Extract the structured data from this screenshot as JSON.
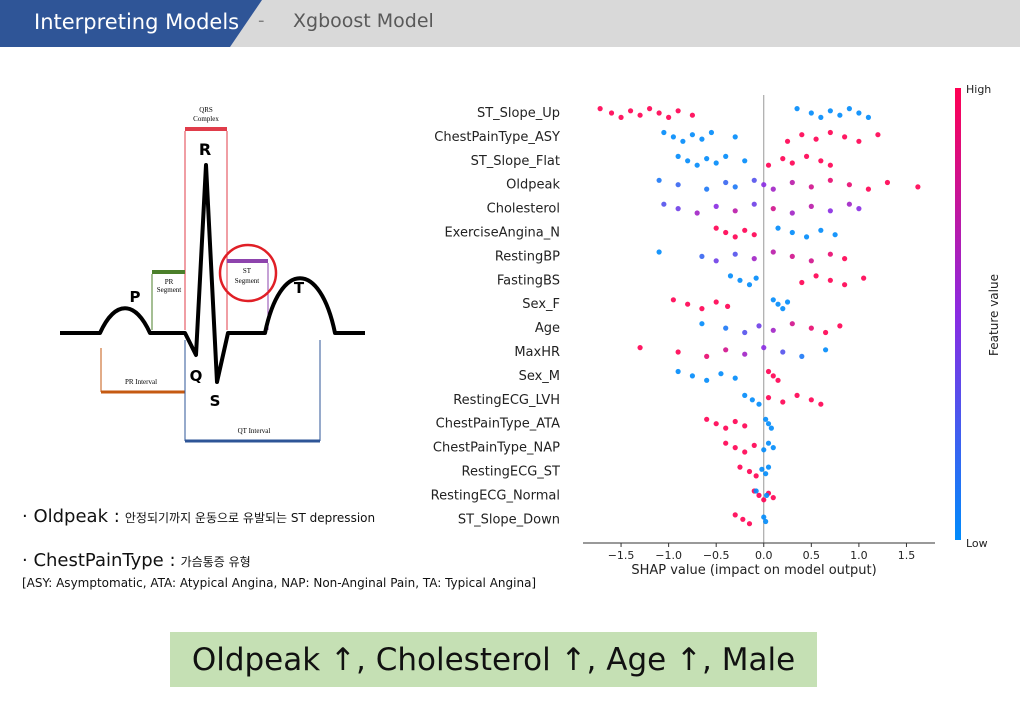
{
  "header": {
    "section": "Interpreting Models",
    "separator": "-",
    "subtitle": "Xgboost Model"
  },
  "diagram": {
    "qrs": [
      "QRS",
      "Complex"
    ],
    "r": "R",
    "p": "P",
    "pr_segment": [
      "PR",
      "Segment"
    ],
    "st_segment": [
      "ST",
      "Segment"
    ],
    "t": "T",
    "q": "Q",
    "s": "S",
    "pr_interval": "PR Interval",
    "qt_interval": "QT Interval"
  },
  "notes": [
    {
      "term": "· Oldpeak :",
      "desc": "안정되기까지 운동으로 유발되는 ST depression"
    },
    {
      "term": "· ChestPainType :",
      "desc": "가슴통증 유형"
    }
  ],
  "abbreviations": "[ASY: Asymptomatic, ATA: Atypical Angina, NAP: Non-Anginal Pain, TA: Typical Angina]",
  "conclusion": "Oldpeak ↑, Cholesterol ↑, Age ↑, Male",
  "chart_data": {
    "type": "beeswarm",
    "xlabel": "SHAP value (impact on model output)",
    "xlim": [
      -1.9,
      1.8
    ],
    "xticks": [
      {
        "value": -1.5,
        "label": "−1.5"
      },
      {
        "value": -1.0,
        "label": "−1.0"
      },
      {
        "value": -0.5,
        "label": "−0.5"
      },
      {
        "value": 0,
        "label": "0.0"
      },
      0.5,
      {
        "value": 1.0,
        "label": "1.0"
      },
      1.5
    ],
    "colorbar": {
      "label": "Feature value",
      "high": "High",
      "low": "Low"
    },
    "colormap": [
      "#008bfb",
      "#8a2be2",
      "#ff0052"
    ],
    "series": [
      {
        "name": "ST_Slope_Up",
        "values": [
          -1.72,
          -1.6,
          -1.5,
          -1.4,
          -1.3,
          -1.2,
          -1.1,
          -1.0,
          -0.9,
          -0.75,
          0.35,
          0.5,
          0.6,
          0.7,
          0.8,
          0.9,
          1.0,
          1.1
        ],
        "feature_values": [
          1,
          1,
          1,
          1,
          1,
          1,
          1,
          1,
          1,
          1,
          0,
          0,
          0,
          0,
          0,
          0,
          0,
          0
        ]
      },
      {
        "name": "ChestPainType_ASY",
        "values": [
          -1.05,
          -0.95,
          -0.85,
          -0.75,
          -0.65,
          -0.55,
          -0.3,
          0.25,
          0.4,
          0.55,
          0.7,
          0.85,
          1.0,
          1.2
        ],
        "feature_values": [
          0,
          0,
          0,
          0,
          0,
          0,
          0,
          1,
          1,
          1,
          1,
          1,
          1,
          1
        ]
      },
      {
        "name": "ST_Slope_Flat",
        "values": [
          -0.9,
          -0.8,
          -0.7,
          -0.6,
          -0.5,
          -0.4,
          -0.2,
          0.05,
          0.2,
          0.3,
          0.45,
          0.6,
          0.7
        ],
        "feature_values": [
          0,
          0,
          0,
          0,
          0,
          0,
          0,
          1,
          1,
          1,
          1,
          1,
          1
        ]
      },
      {
        "name": "Oldpeak",
        "values": [
          -1.1,
          -0.9,
          -0.6,
          -0.4,
          -0.3,
          -0.1,
          0.0,
          0.1,
          0.3,
          0.5,
          0.7,
          0.9,
          1.1,
          1.3,
          1.62
        ],
        "feature_values": [
          0.1,
          0.2,
          0.1,
          0.2,
          0.1,
          0.3,
          0.5,
          0.6,
          0.7,
          0.8,
          0.9,
          0.9,
          1,
          1,
          1
        ]
      },
      {
        "name": "Cholesterol",
        "values": [
          -1.05,
          -0.9,
          -0.7,
          -0.5,
          -0.3,
          -0.1,
          0.1,
          0.3,
          0.5,
          0.7,
          0.9,
          1.0
        ],
        "feature_values": [
          0.3,
          0.4,
          0.6,
          0.5,
          0.7,
          0.4,
          0.8,
          0.6,
          0.7,
          0.5,
          0.6,
          0.5
        ]
      },
      {
        "name": "ExerciseAngina_N",
        "values": [
          -0.5,
          -0.4,
          -0.3,
          -0.2,
          -0.1,
          0.15,
          0.3,
          0.45,
          0.6,
          0.75
        ],
        "feature_values": [
          1,
          1,
          1,
          1,
          1,
          0,
          0,
          0,
          0,
          0
        ]
      },
      {
        "name": "RestingBP",
        "values": [
          -1.1,
          -0.65,
          -0.5,
          -0.3,
          -0.1,
          0.1,
          0.3,
          0.5,
          0.7,
          0.85
        ],
        "feature_values": [
          0,
          0.2,
          0.4,
          0.3,
          0.6,
          0.7,
          0.8,
          0.8,
          0.9,
          1
        ]
      },
      {
        "name": "FastingBS",
        "values": [
          -0.35,
          -0.25,
          -0.15,
          -0.08,
          0.4,
          0.55,
          0.7,
          0.85,
          1.05
        ],
        "feature_values": [
          0,
          0,
          0,
          0,
          1,
          1,
          1,
          1,
          1
        ]
      },
      {
        "name": "Sex_F",
        "values": [
          -0.95,
          -0.8,
          -0.65,
          -0.5,
          -0.38,
          0.1,
          0.15,
          0.2,
          0.25
        ],
        "feature_values": [
          1,
          1,
          1,
          1,
          1,
          0,
          0,
          0,
          0
        ]
      },
      {
        "name": "Age",
        "values": [
          -0.65,
          -0.4,
          -0.2,
          -0.05,
          0.1,
          0.3,
          0.5,
          0.65,
          0.8
        ],
        "feature_values": [
          0,
          0.1,
          0.3,
          0.4,
          0.6,
          0.8,
          0.9,
          1,
          1
        ]
      },
      {
        "name": "MaxHR",
        "values": [
          -1.3,
          -0.9,
          -0.6,
          -0.4,
          -0.2,
          0.0,
          0.2,
          0.4,
          0.65
        ],
        "feature_values": [
          1,
          1,
          0.9,
          0.8,
          0.6,
          0.5,
          0.3,
          0.1,
          0
        ]
      },
      {
        "name": "Sex_M",
        "values": [
          -0.9,
          -0.75,
          -0.6,
          -0.45,
          -0.3,
          0.05,
          0.1,
          0.15
        ],
        "feature_values": [
          0,
          0,
          0,
          0,
          0,
          1,
          1,
          1
        ]
      },
      {
        "name": "RestingECG_LVH",
        "values": [
          -0.2,
          -0.12,
          -0.05,
          0.05,
          0.2,
          0.35,
          0.5,
          0.6
        ],
        "feature_values": [
          0,
          0,
          0,
          1,
          1,
          1,
          1,
          1
        ]
      },
      {
        "name": "ChestPainType_ATA",
        "values": [
          -0.6,
          -0.5,
          -0.4,
          -0.3,
          -0.2,
          0.02,
          0.05,
          0.08
        ],
        "feature_values": [
          1,
          1,
          1,
          1,
          1,
          0,
          0,
          0
        ]
      },
      {
        "name": "ChestPainType_NAP",
        "values": [
          -0.4,
          -0.3,
          -0.2,
          -0.1,
          0.0,
          0.05,
          0.1
        ],
        "feature_values": [
          1,
          1,
          1,
          1,
          0,
          0,
          0
        ]
      },
      {
        "name": "RestingECG_ST",
        "values": [
          -0.25,
          -0.15,
          -0.08,
          -0.02,
          0.02,
          0.05
        ],
        "feature_values": [
          1,
          1,
          1,
          0,
          0,
          0
        ]
      },
      {
        "name": "RestingECG_Normal",
        "values": [
          -0.1,
          -0.05,
          0.0,
          0.05,
          0.1,
          -0.08,
          0.03
        ],
        "feature_values": [
          1,
          1,
          1,
          1,
          1,
          0,
          0
        ]
      },
      {
        "name": "ST_Slope_Down",
        "values": [
          -0.3,
          -0.22,
          -0.15,
          0.0,
          0.02
        ],
        "feature_values": [
          1,
          1,
          1,
          0,
          0
        ]
      }
    ]
  }
}
